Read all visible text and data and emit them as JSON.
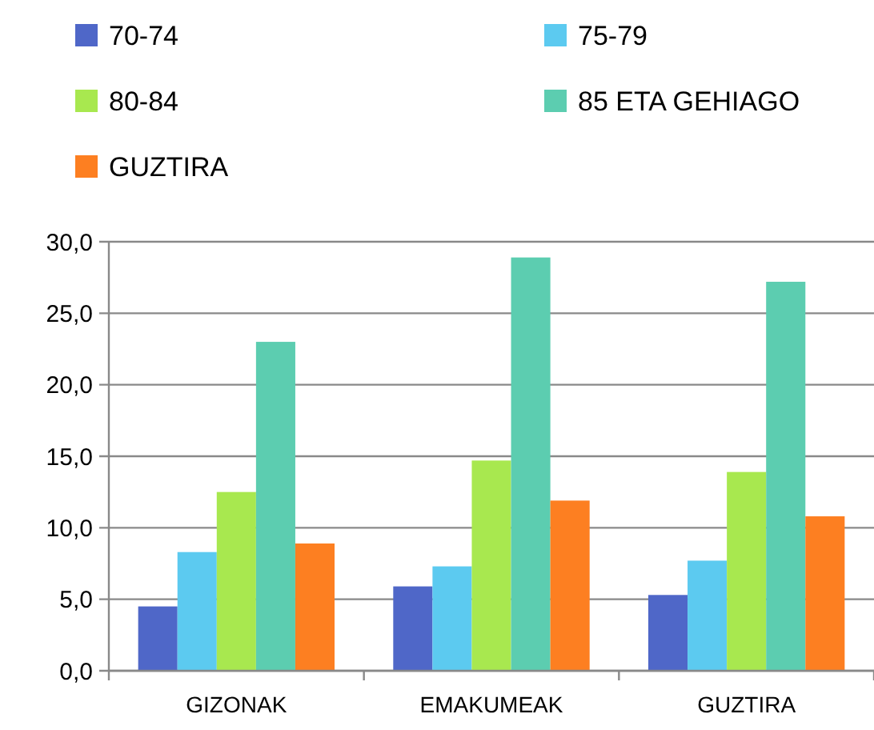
{
  "chart_data": {
    "type": "bar",
    "categories": [
      "GIZONAK",
      "EMAKUMEAK",
      "GUZTIRA"
    ],
    "series": [
      {
        "name": "70-74",
        "color": "#4f67c8",
        "values": [
          4.5,
          5.9,
          5.3
        ]
      },
      {
        "name": "75-79",
        "color": "#5ccaf0",
        "values": [
          8.3,
          7.3,
          7.7
        ]
      },
      {
        "name": "80-84",
        "color": "#a8e84f",
        "values": [
          12.5,
          14.7,
          13.9
        ]
      },
      {
        "name": "85 ETA GEHIAGO",
        "color": "#5ccdb0",
        "values": [
          23.0,
          28.9,
          27.2
        ]
      },
      {
        "name": "GUZTIRA",
        "color": "#fd7f21",
        "values": [
          8.9,
          11.9,
          10.8
        ]
      }
    ],
    "ylim": [
      0,
      30
    ],
    "yticks": [
      {
        "value": 0,
        "label": "0,0"
      },
      {
        "value": 5,
        "label": "5,0"
      },
      {
        "value": 10,
        "label": "10,0"
      },
      {
        "value": 15,
        "label": "15,0"
      },
      {
        "value": 20,
        "label": "20,0"
      },
      {
        "value": 25,
        "label": "25,0"
      },
      {
        "value": 30,
        "label": "30,0"
      }
    ],
    "grid": "y",
    "legend": "top"
  }
}
